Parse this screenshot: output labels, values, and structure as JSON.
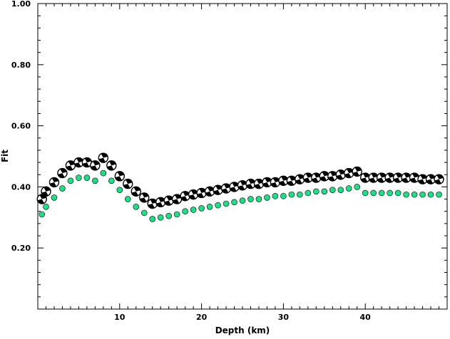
{
  "chart_data": {
    "type": "scatter",
    "title": "",
    "xlabel": "Depth (km)",
    "ylabel": "Fit",
    "xlim": [
      0,
      50
    ],
    "ylim": [
      0.0,
      1.0
    ],
    "x_ticks": [
      10,
      20,
      30,
      40
    ],
    "x_tick_labels": [
      "10",
      "20",
      "30",
      "40"
    ],
    "y_ticks": [
      0.2,
      0.4,
      0.6,
      0.8,
      1.0
    ],
    "y_tick_labels": [
      "0.20",
      "0.40",
      "0.60",
      "0.80",
      "1.00"
    ],
    "grid": false,
    "legend": "none",
    "series": [
      {
        "marker": "focal-mechanism",
        "color": "#000000",
        "x": [
          0.5,
          1,
          2,
          3,
          4,
          5,
          6,
          7,
          8,
          9,
          10,
          11,
          12,
          13,
          14,
          15,
          16,
          17,
          18,
          19,
          20,
          21,
          22,
          23,
          24,
          25,
          26,
          27,
          28,
          29,
          30,
          31,
          32,
          33,
          34,
          35,
          36,
          37,
          38,
          39,
          40,
          41,
          42,
          43,
          44,
          45,
          46,
          47,
          48,
          49
        ],
        "values": [
          0.36,
          0.385,
          0.415,
          0.445,
          0.47,
          0.48,
          0.48,
          0.47,
          0.495,
          0.47,
          0.435,
          0.41,
          0.385,
          0.365,
          0.345,
          0.35,
          0.355,
          0.36,
          0.37,
          0.375,
          0.38,
          0.385,
          0.39,
          0.395,
          0.4,
          0.405,
          0.41,
          0.41,
          0.415,
          0.415,
          0.42,
          0.42,
          0.425,
          0.43,
          0.43,
          0.435,
          0.435,
          0.44,
          0.445,
          0.45,
          0.43,
          0.43,
          0.43,
          0.43,
          0.43,
          0.43,
          0.43,
          0.425,
          0.425,
          0.425
        ]
      },
      {
        "marker": "dot",
        "color": "#22dd88",
        "x": [
          0.5,
          1,
          2,
          3,
          4,
          5,
          6,
          7,
          8,
          9,
          10,
          11,
          12,
          13,
          14,
          15,
          16,
          17,
          18,
          19,
          20,
          21,
          22,
          23,
          24,
          25,
          26,
          27,
          28,
          29,
          30,
          31,
          32,
          33,
          34,
          35,
          36,
          37,
          38,
          39,
          40,
          41,
          42,
          43,
          44,
          45,
          46,
          47,
          48,
          49
        ],
        "values": [
          0.31,
          0.335,
          0.365,
          0.395,
          0.42,
          0.43,
          0.43,
          0.42,
          0.445,
          0.42,
          0.39,
          0.36,
          0.335,
          0.315,
          0.295,
          0.3,
          0.305,
          0.31,
          0.32,
          0.325,
          0.33,
          0.335,
          0.34,
          0.345,
          0.35,
          0.355,
          0.36,
          0.36,
          0.365,
          0.37,
          0.37,
          0.375,
          0.375,
          0.38,
          0.385,
          0.385,
          0.39,
          0.39,
          0.395,
          0.4,
          0.38,
          0.38,
          0.38,
          0.38,
          0.38,
          0.375,
          0.375,
          0.375,
          0.375,
          0.375
        ]
      }
    ]
  }
}
